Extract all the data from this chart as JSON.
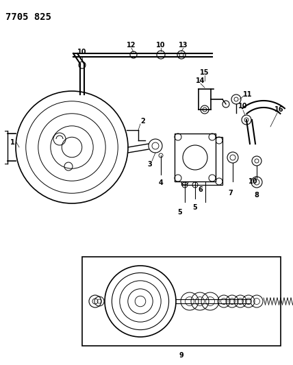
{
  "title": "7705 825",
  "bg_color": "#ffffff",
  "line_color": "#000000",
  "title_fontsize": 10,
  "label_fontsize": 7,
  "figsize": [
    4.28,
    5.33
  ],
  "dpi": 100
}
